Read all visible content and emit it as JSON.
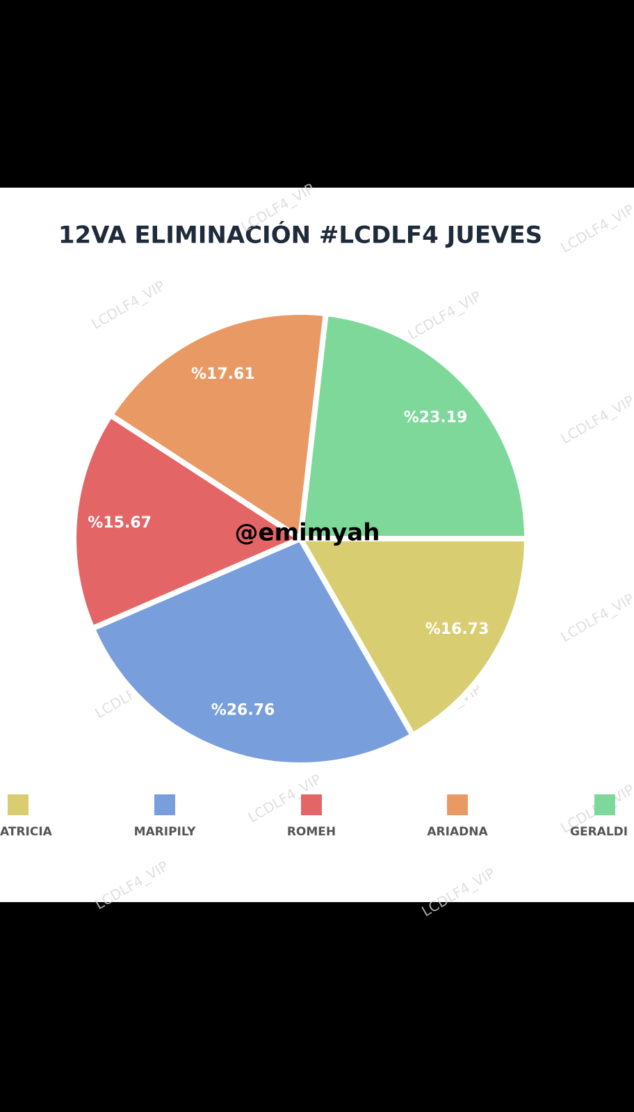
{
  "chart_data": {
    "type": "pie",
    "title": "12VA ELIMINACIÓN #LCDLF4 JUEVES",
    "categories": [
      "ATRICIA",
      "MARIPILY",
      "ROMEH",
      "ARIADNA",
      "GERALDI"
    ],
    "values": [
      16.73,
      26.76,
      15.67,
      17.61,
      23.19
    ],
    "value_labels": [
      "%16.73",
      "%26.76",
      "%15.67",
      "%17.61",
      "%23.19"
    ],
    "colors": [
      "#d9cd72",
      "#789fdc",
      "#e46566",
      "#e99a64",
      "#7dd89a"
    ],
    "legend": "bottom"
  },
  "watermark": "LCDLF4_VIP",
  "overlay_text": "@emimyah"
}
